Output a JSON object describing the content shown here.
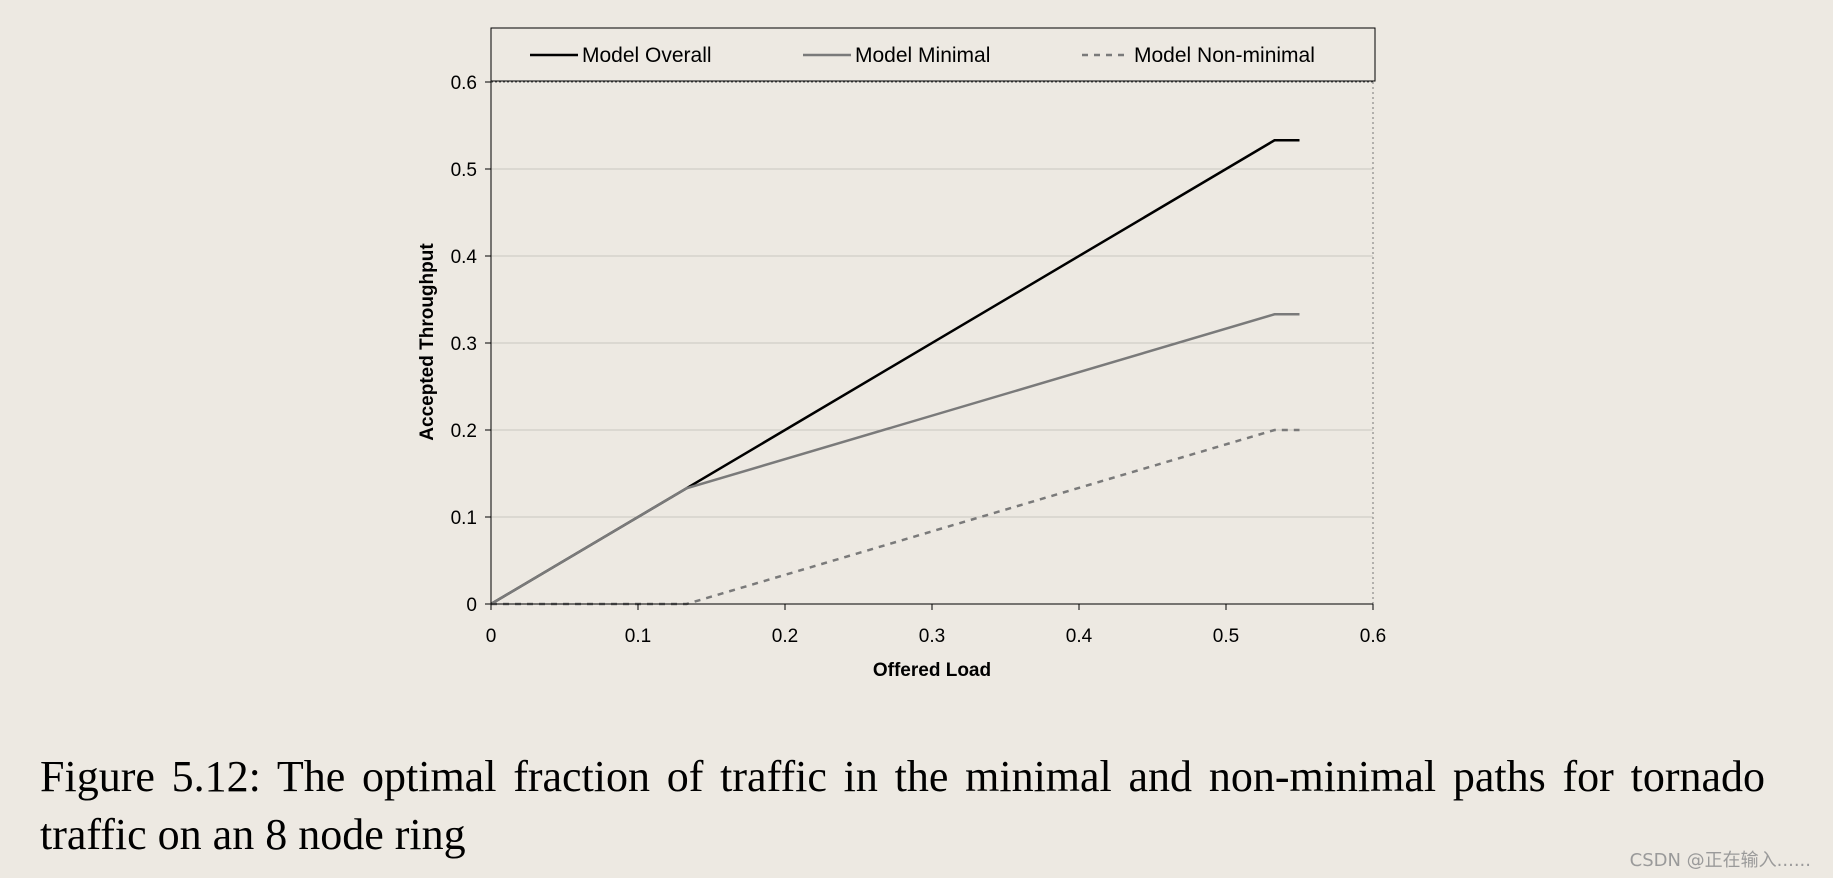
{
  "chart_data": {
    "type": "line",
    "xlabel": "Offered Load",
    "ylabel": "Accepted Throughput",
    "xlim": [
      0,
      0.6
    ],
    "ylim": [
      0,
      0.6
    ],
    "x_ticks": [
      "0",
      "0.1",
      "0.2",
      "0.3",
      "0.4",
      "0.5",
      "0.6"
    ],
    "y_ticks": [
      "0",
      "0.1",
      "0.2",
      "0.3",
      "0.4",
      "0.5",
      "0.6"
    ],
    "grid": "horizontal",
    "legend_position": "top",
    "series": [
      {
        "name": "Model Overall",
        "style": "solid",
        "color": "#000000",
        "x": [
          0,
          0.133,
          0.533,
          0.55
        ],
        "y": [
          0,
          0.133,
          0.533,
          0.533
        ]
      },
      {
        "name": "Model Minimal",
        "style": "solid",
        "color": "#7a7a7a",
        "x": [
          0,
          0.133,
          0.533,
          0.55
        ],
        "y": [
          0,
          0.133,
          0.333,
          0.333
        ]
      },
      {
        "name": "Model Non-minimal",
        "style": "dashed",
        "color": "#7a7a7a",
        "x": [
          0,
          0.133,
          0.533,
          0.55
        ],
        "y": [
          0,
          0,
          0.2,
          0.2
        ]
      }
    ]
  },
  "caption": "Figure 5.12: The optimal fraction of traffic in the minimal and non-minimal paths for tornado traffic on an 8 node ring",
  "watermark": "CSDN @正在输入......"
}
